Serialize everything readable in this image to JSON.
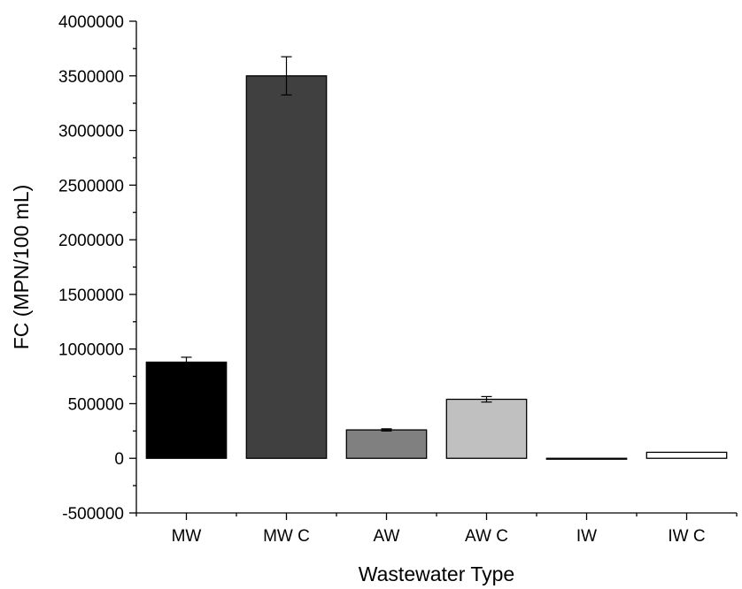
{
  "chart_data": {
    "type": "bar",
    "categories": [
      "MW",
      "MW C",
      "AW",
      "AW C",
      "IW",
      "IW C"
    ],
    "values": [
      880000,
      3500000,
      260000,
      540000,
      0,
      55000
    ],
    "errors": [
      45000,
      175000,
      10000,
      25000,
      0,
      0
    ],
    "colors": [
      "#000000",
      "#404040",
      "#808080",
      "#c0c0c0",
      "#e6e6e6",
      "#ffffff"
    ],
    "xlabel": "Wastewater Type",
    "ylabel": "FC (MPN/100 mL)",
    "ylim": [
      -500000,
      4000000
    ],
    "yticks": [
      -500000,
      0,
      500000,
      1000000,
      1500000,
      2000000,
      2500000,
      3000000,
      3500000,
      4000000
    ],
    "ytick_labels": [
      "-500000",
      "0",
      "500000",
      "1000000",
      "1500000",
      "2000000",
      "2500000",
      "3000000",
      "3500000",
      "4000000"
    ],
    "grid": false,
    "legend": "none"
  }
}
